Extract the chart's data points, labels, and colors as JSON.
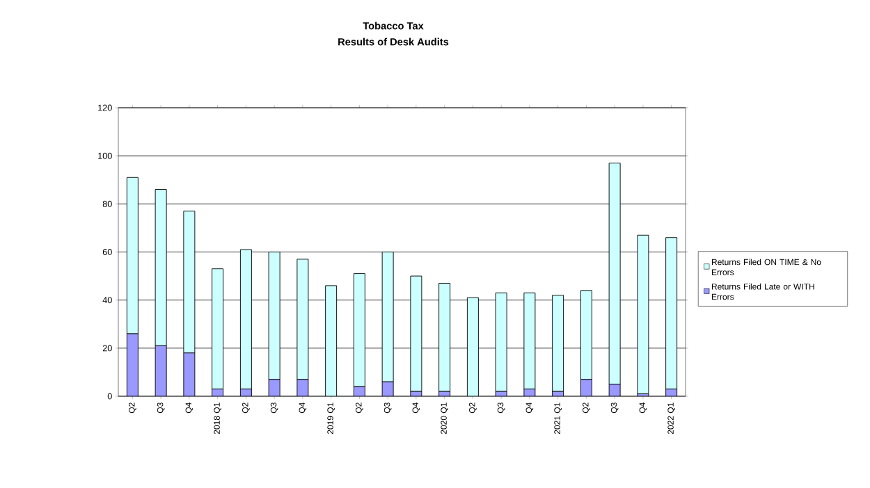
{
  "chart_data": {
    "type": "bar",
    "title": "Tobacco Tax",
    "subtitle": "Results of Desk Audits",
    "categories": [
      "Q2",
      "Q3",
      "Q4",
      "2018 Q1",
      "Q2",
      "Q3",
      "Q4",
      "2019 Q1",
      "Q2",
      "Q3",
      "Q4",
      "2020 Q1",
      "Q2",
      "Q3",
      "Q4",
      "2021 Q1",
      "Q2",
      "Q3",
      "Q4",
      "2022 Q1"
    ],
    "stacked": true,
    "series": [
      {
        "name": "Returns Filed Late or WITH Errors",
        "color": "#9999ff",
        "values": [
          26,
          21,
          18,
          3,
          3,
          7,
          7,
          0,
          4,
          6,
          2,
          2,
          0,
          2,
          3,
          2,
          7,
          5,
          1,
          3
        ]
      },
      {
        "name": "Returns Filed ON TIME & No Errors",
        "color": "#ccffff",
        "values": [
          65,
          65,
          59,
          50,
          58,
          53,
          50,
          46,
          47,
          54,
          48,
          45,
          41,
          41,
          40,
          40,
          37,
          92,
          66,
          63
        ]
      }
    ],
    "ylim": [
      0,
      120
    ],
    "yticks": [
      0,
      20,
      40,
      60,
      80,
      100,
      120
    ],
    "grid": "y",
    "legend": "right"
  }
}
